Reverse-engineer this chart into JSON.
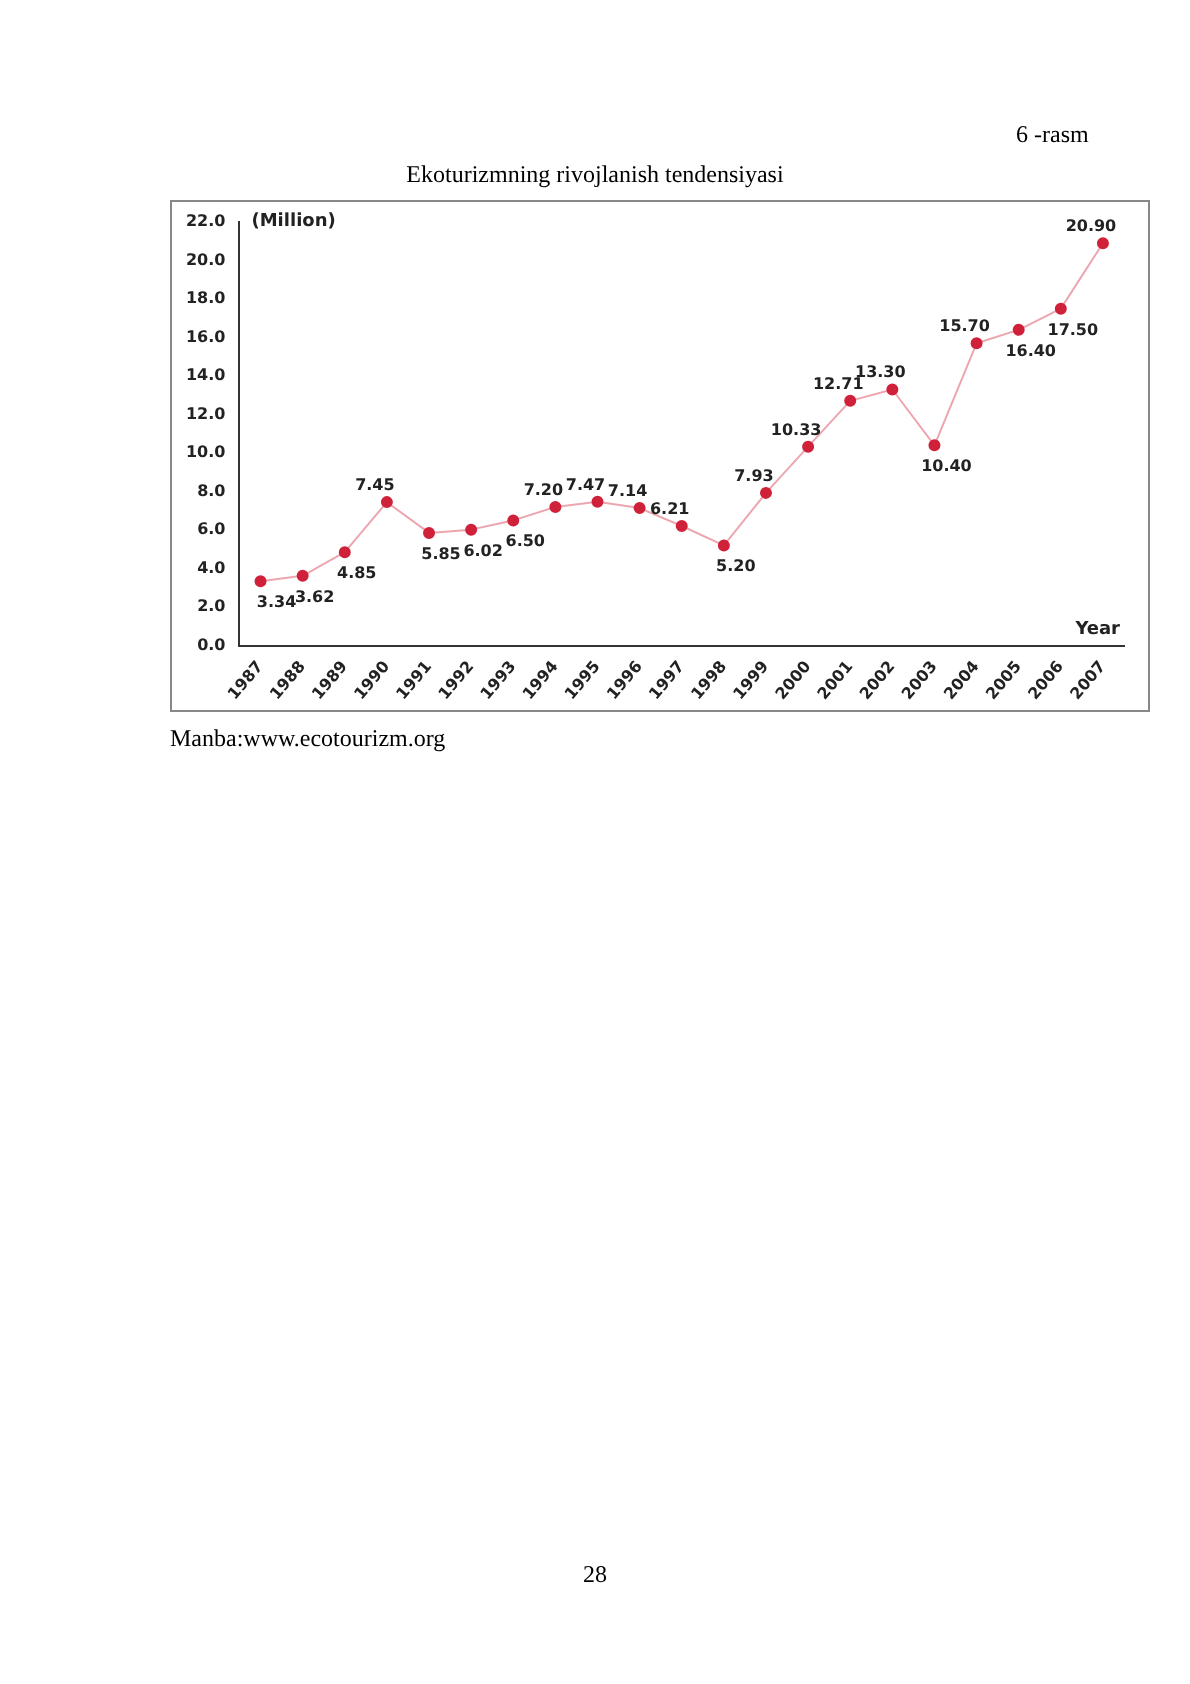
{
  "chart_data": {
    "type": "line",
    "title": "Ekoturizmning rivojlanish tendensiyasi",
    "ylabel": "(Million)",
    "xlabel": "Year",
    "categories": [
      "1987",
      "1988",
      "1989",
      "1990",
      "1991",
      "1992",
      "1993",
      "1994",
      "1995",
      "1996",
      "1997",
      "1998",
      "1999",
      "2000",
      "2001",
      "2002",
      "2003",
      "2004",
      "2005",
      "2006",
      "2007"
    ],
    "series": [
      {
        "color": "#d0213a",
        "values": [
          3.34,
          3.62,
          4.85,
          7.45,
          5.85,
          6.02,
          6.5,
          7.2,
          7.47,
          7.14,
          6.21,
          5.2,
          7.93,
          10.33,
          12.71,
          13.3,
          10.4,
          15.7,
          16.4,
          17.5,
          20.9
        ],
        "value_labels": [
          "3.34",
          "3.62",
          "4.85",
          "7.45",
          "5.85",
          "6.02",
          "6.50",
          "7.20",
          "7.47",
          "7.14",
          "6.21",
          "5.20",
          "7.93",
          "10.33",
          "12.71",
          "13.30",
          "10.40",
          "15.70",
          "16.40",
          "17.50",
          "20.90"
        ]
      }
    ],
    "ylim": [
      0,
      22
    ],
    "yticks": [
      {
        "value": 0,
        "label": "0.0"
      },
      {
        "value": 2,
        "label": "2.0"
      },
      {
        "value": 4,
        "label": "4.0"
      },
      {
        "value": 6,
        "label": "6.0"
      },
      {
        "value": 8,
        "label": "8.0"
      },
      {
        "value": 10,
        "label": "10.0"
      },
      {
        "value": 12,
        "label": "12.0"
      },
      {
        "value": 14,
        "label": "14.0"
      },
      {
        "value": 16,
        "label": "16.0"
      },
      {
        "value": 18,
        "label": "18.0"
      },
      {
        "value": 20,
        "label": "20.0"
      },
      {
        "value": 22,
        "label": "22.0"
      }
    ],
    "grid": false,
    "legend": false,
    "marker": "circle",
    "line_style": "solid",
    "annotations": [
      "6 -rasm",
      "Manba:www.ecotourizm.org",
      "28"
    ]
  }
}
